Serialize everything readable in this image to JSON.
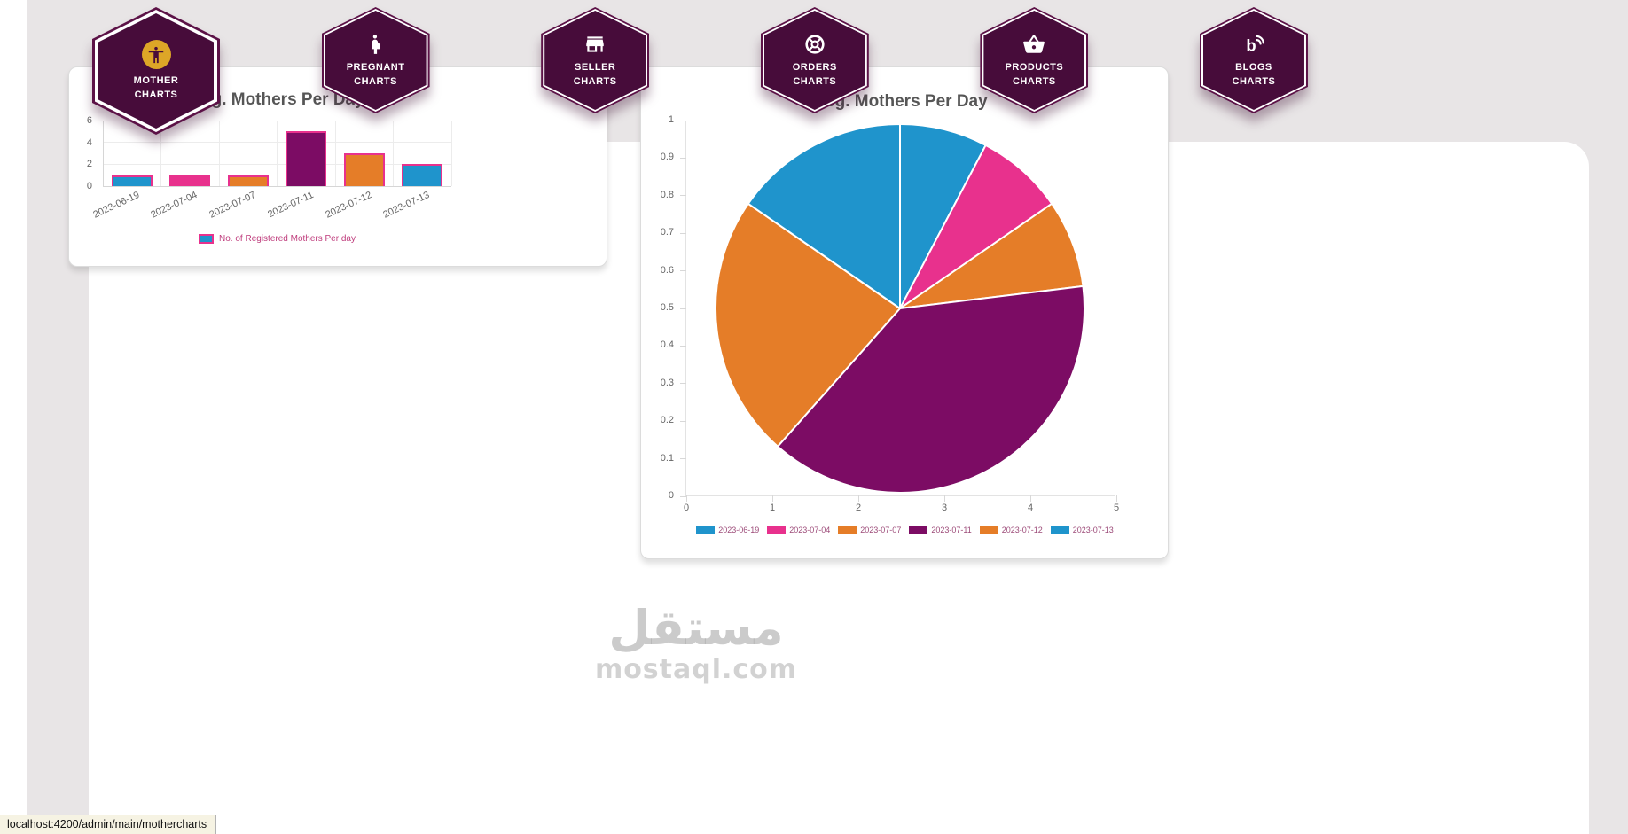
{
  "theme": {
    "hexagon_fill": "#470c3a",
    "hexagon_ring": "#5c1247",
    "accent_gold": "#dda627",
    "series_blue": "#1f94cc",
    "series_pink": "#e8318d",
    "series_orange": "#e57d28",
    "series_purple": "#7c0c64",
    "page_background": "#e8e5e6"
  },
  "nav": {
    "items": [
      {
        "label1": "MOTHER",
        "label2": "CHARTS",
        "icon": "accessibility-icon",
        "active": true
      },
      {
        "label1": "PREGNANT",
        "label2": "CHARTS",
        "icon": "pregnant-woman-icon",
        "active": false
      },
      {
        "label1": "SELLER",
        "label2": "CHARTS",
        "icon": "storefront-icon",
        "active": false
      },
      {
        "label1": "ORDERS",
        "label2": "CHARTS",
        "icon": "orders-wheel-icon",
        "active": false
      },
      {
        "label1": "PRODUCTS",
        "label2": "CHARTS",
        "icon": "shopping-basket-icon",
        "active": false
      },
      {
        "label1": "BLOGS",
        "label2": "CHARTS",
        "icon": "blog-icon",
        "active": false
      }
    ]
  },
  "chart_data": [
    {
      "type": "bar",
      "title": "Reg. Mothers Per Day",
      "categories": [
        "2023-06-19",
        "2023-07-04",
        "2023-07-07",
        "2023-07-11",
        "2023-07-12",
        "2023-07-13"
      ],
      "values": [
        1,
        1,
        1,
        5,
        3,
        2
      ],
      "ylim": [
        0,
        6
      ],
      "yticks": [
        0,
        2,
        4,
        6
      ],
      "grid": true,
      "legend_label": "No. of Registered Mothers Per day",
      "legend_position": "bottom",
      "bar_colors": [
        "#1f94cc",
        "#e8318d",
        "#e57d28",
        "#7c0c64",
        "#e57d28",
        "#1f94cc"
      ],
      "bar_border_color": "#e8318d"
    },
    {
      "type": "pie",
      "title": "Reg. Mothers Per Day",
      "labels": [
        "2023-06-19",
        "2023-07-04",
        "2023-07-07",
        "2023-07-11",
        "2023-07-12",
        "2023-07-13"
      ],
      "values": [
        1,
        1,
        1,
        5,
        3,
        2
      ],
      "colors": [
        "#1f94cc",
        "#e8318d",
        "#e57d28",
        "#7c0c64",
        "#e57d28",
        "#1f94cc"
      ],
      "axes": {
        "ylim": [
          0,
          1
        ],
        "xlim": [
          0,
          5
        ],
        "yticks": [
          0,
          0.1,
          0.2,
          0.3,
          0.4,
          0.5,
          0.6,
          0.7,
          0.8,
          0.9,
          1
        ],
        "xticks": [
          0,
          1,
          2,
          3,
          4,
          5
        ]
      },
      "legend_position": "bottom"
    }
  ],
  "watermark": {
    "line1": "مستقل",
    "line2": "mostaql.com"
  },
  "browser": {
    "status_url": "localhost:4200/admin/main/mothercharts"
  }
}
